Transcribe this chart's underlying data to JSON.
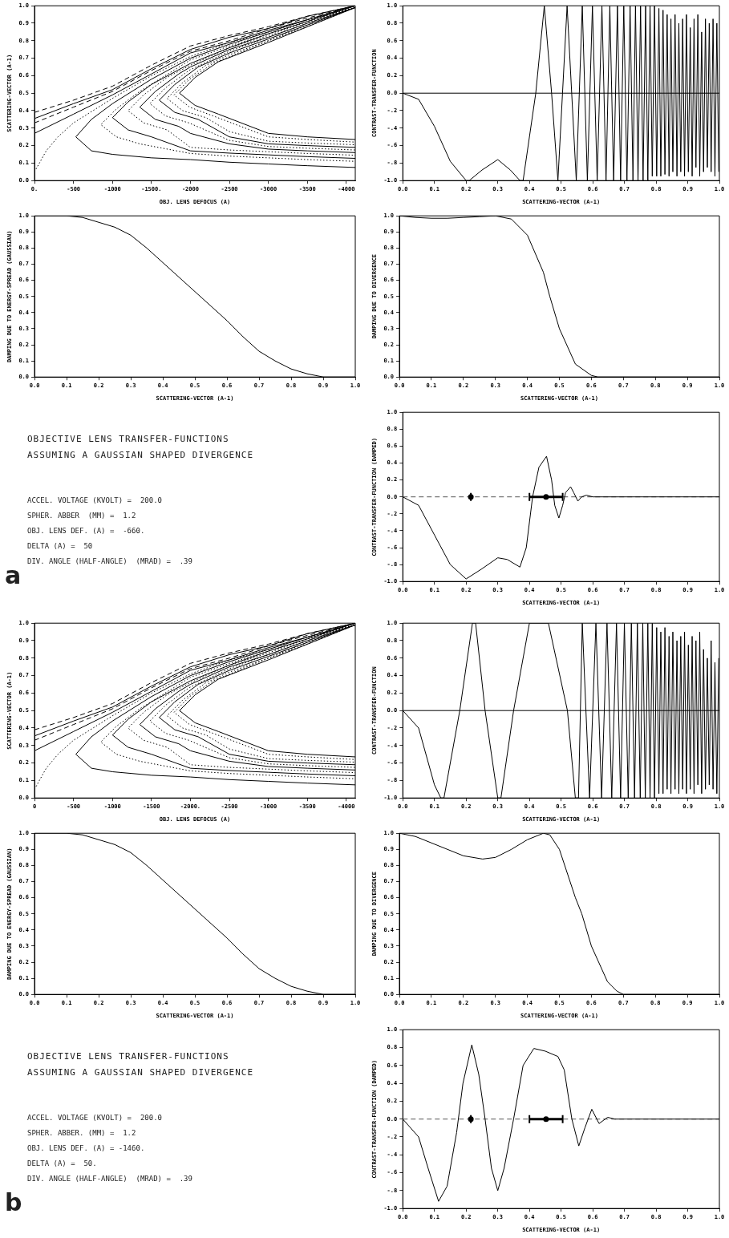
{
  "chart_data": [
    {
      "type": "line",
      "xlabel": "OBJ. LENS DEFOCUS (A)",
      "ylabel": "SCATTERING-VECTOR (A-1)",
      "xlim": [
        0,
        -4115
      ],
      "ylim": [
        0,
        1
      ],
      "xticks": [
        {
          "value": 0,
          "label": "0."
        },
        -500,
        -1000,
        {
          "value": -1500,
          "label": "-1500."
        },
        -2000,
        -2500,
        -3000,
        -3500,
        -4000
      ],
      "yticks": [
        {
          "value": 0,
          "label": "0.0"
        },
        0.1,
        0.2,
        0.3,
        0.4,
        0.5,
        0.6,
        0.7,
        0.8,
        0.9,
        {
          "value": 1,
          "label": "1.0"
        }
      ],
      "grid": false,
      "legend": false,
      "marker": "none",
      "series": [
        {
          "color": "#000000",
          "line_style": "dashed",
          "x": [
            0,
            -500,
            -1000,
            -1500,
            -2000,
            -2500,
            -3000,
            -3500,
            -4115
          ],
          "values": [
            0.39,
            0.46,
            0.54,
            0.66,
            0.77,
            0.83,
            0.88,
            0.94,
            1.0
          ]
        },
        {
          "color": "#000000",
          "line_style": "solid",
          "x": [
            0,
            -500,
            -1000,
            -1500,
            -2000,
            -2500,
            -3000,
            -3500,
            -4115
          ],
          "values": [
            0.355,
            0.44,
            0.52,
            0.64,
            0.75,
            0.82,
            0.87,
            0.94,
            1.0
          ]
        },
        {
          "color": "#000000",
          "line_style": "dashed",
          "x": [
            0,
            -500,
            -1000,
            -1500,
            -2000,
            -2500,
            -3000,
            -3500,
            -4115
          ],
          "values": [
            0.33,
            0.42,
            0.51,
            0.63,
            0.74,
            0.8,
            0.87,
            0.93,
            1.0
          ]
        },
        {
          "color": "#000000",
          "line_style": "solid",
          "x": [
            0,
            -500,
            -1000,
            -1500,
            -2000,
            -2500,
            -3000,
            -3500,
            -4115
          ],
          "values": [
            0.27,
            0.38,
            0.49,
            0.61,
            0.73,
            0.79,
            0.86,
            0.92,
            1.0
          ]
        },
        {
          "color": "#000000",
          "line_style": "dotted",
          "x": [
            0,
            -150,
            -300,
            -500,
            -1000,
            -1500,
            -2000,
            -2500,
            -3000,
            -3500,
            -4115
          ],
          "values": [
            0.05,
            0.17,
            0.25,
            0.33,
            0.47,
            0.6,
            0.71,
            0.79,
            0.85,
            0.92,
            0.99
          ]
        },
        {
          "color": "#000000",
          "line_style": "solid",
          "x": [
            -4115,
            -3500,
            -3000,
            -2500,
            -2000,
            -1500,
            -1000,
            -730,
            -530,
            -730,
            -1000,
            -1500,
            -2000,
            -2500,
            -3000,
            -3500,
            -4115
          ],
          "values": [
            1.0,
            0.92,
            0.85,
            0.78,
            0.7,
            0.58,
            0.44,
            0.35,
            0.25,
            0.17,
            0.15,
            0.13,
            0.12,
            0.105,
            0.095,
            0.085,
            0.075
          ]
        },
        {
          "color": "#000000",
          "line_style": "dotted",
          "x": [
            -4115,
            -3500,
            -3000,
            -2500,
            -2000,
            -1350,
            -1050,
            -850,
            -1050,
            -1350,
            -2000,
            -2500,
            -3000,
            -3500,
            -4115
          ],
          "values": [
            1.0,
            0.91,
            0.84,
            0.77,
            0.69,
            0.51,
            0.41,
            0.32,
            0.25,
            0.21,
            0.155,
            0.14,
            0.13,
            0.12,
            0.11
          ]
        },
        {
          "color": "#000000",
          "line_style": "solid",
          "x": [
            -4115,
            -3500,
            -3000,
            -2500,
            -2000,
            -1500,
            -1200,
            -1000,
            -1200,
            -1500,
            -2000,
            -2500,
            -3000,
            -3500,
            -4115
          ],
          "values": [
            1.0,
            0.91,
            0.84,
            0.76,
            0.67,
            0.55,
            0.45,
            0.36,
            0.29,
            0.25,
            0.17,
            0.157,
            0.147,
            0.137,
            0.127
          ]
        },
        {
          "color": "#000000",
          "line_style": "dotted",
          "x": [
            -4115,
            -3500,
            -3000,
            -2500,
            -2000,
            -1700,
            -1400,
            -1200,
            -1400,
            -1700,
            -2000,
            -2500,
            -3000,
            -3500,
            -4115
          ],
          "values": [
            0.99,
            0.91,
            0.83,
            0.76,
            0.66,
            0.59,
            0.49,
            0.4,
            0.33,
            0.29,
            0.19,
            0.175,
            0.165,
            0.155,
            0.145
          ]
        },
        {
          "color": "#000000",
          "line_style": "solid",
          "x": [
            -4115,
            -3500,
            -3000,
            -2500,
            -2000,
            -1850,
            -1550,
            -1350,
            -1550,
            -1850,
            -2000,
            -2500,
            -3000,
            -3500,
            -4115
          ],
          "values": [
            0.99,
            0.9,
            0.82,
            0.75,
            0.65,
            0.61,
            0.51,
            0.42,
            0.35,
            0.31,
            0.27,
            0.21,
            0.18,
            0.17,
            0.16
          ]
        },
        {
          "color": "#000000",
          "line_style": "dotted",
          "x": [
            -4115,
            -3500,
            -3000,
            -2500,
            -1980,
            -1680,
            -1480,
            -1680,
            -1980,
            -2500,
            -3000,
            -3500,
            -4115
          ],
          "values": [
            0.99,
            0.9,
            0.82,
            0.74,
            0.63,
            0.53,
            0.44,
            0.37,
            0.33,
            0.23,
            0.195,
            0.185,
            0.175
          ]
        },
        {
          "color": "#000000",
          "line_style": "solid",
          "x": [
            -4115,
            -3500,
            -3000,
            -2500,
            -2100,
            -1800,
            -1600,
            -1800,
            -2100,
            -2500,
            -3000,
            -3500,
            -4115
          ],
          "values": [
            0.99,
            0.89,
            0.81,
            0.73,
            0.65,
            0.55,
            0.46,
            0.39,
            0.35,
            0.25,
            0.21,
            0.2,
            0.19
          ]
        },
        {
          "color": "#000000",
          "line_style": "dotted",
          "x": [
            -4115,
            -3500,
            -3000,
            -2500,
            -2200,
            -1900,
            -1700,
            -1900,
            -2200,
            -2500,
            -3000,
            -3500,
            -4115
          ],
          "values": [
            0.99,
            0.89,
            0.8,
            0.72,
            0.66,
            0.56,
            0.47,
            0.4,
            0.36,
            0.28,
            0.225,
            0.215,
            0.205
          ]
        },
        {
          "color": "#000000",
          "line_style": "dotted",
          "x": [
            -4115,
            -3500,
            -3000,
            -2290,
            -1990,
            -1790,
            -1990,
            -2290,
            -3000,
            -3500,
            -4115
          ],
          "values": [
            0.99,
            0.88,
            0.8,
            0.67,
            0.58,
            0.49,
            0.42,
            0.37,
            0.25,
            0.235,
            0.22
          ]
        },
        {
          "color": "#000000",
          "line_style": "solid",
          "x": [
            -4115,
            -3500,
            -3000,
            -2360,
            -2060,
            -1860,
            -2060,
            -2360,
            -3000,
            -3500,
            -4115
          ],
          "values": [
            0.99,
            0.88,
            0.79,
            0.68,
            0.59,
            0.5,
            0.43,
            0.38,
            0.27,
            0.25,
            0.235
          ]
        }
      ]
    },
    {
      "type": "line",
      "xlabel": "SCATTERING-VECTOR (A-1)",
      "ylabel": "CONTRAST-TRANSFER-FUNCTION",
      "xlim": [
        0,
        1
      ],
      "ylim": [
        -1,
        1
      ],
      "xticks": [
        {
          "value": 0,
          "label": "0.0"
        },
        0.1,
        0.2,
        0.3,
        0.4,
        0.5,
        0.6,
        0.7,
        0.8,
        0.9,
        {
          "value": 1,
          "label": "1.0"
        }
      ],
      "yticks": [
        {
          "value": -1,
          "label": "-1.0"
        },
        {
          "value": -0.8,
          "label": "-.8"
        },
        {
          "value": -0.6,
          "label": "-.6"
        },
        {
          "value": -0.4,
          "label": "-.4"
        },
        {
          "value": -0.2,
          "label": "-.2"
        },
        {
          "value": 0,
          "label": "0.0"
        },
        0.2,
        0.4,
        0.6,
        0.8,
        {
          "value": 1,
          "label": "1.0"
        }
      ],
      "grid": false,
      "legend": false,
      "marker": "none",
      "ref_lines": [
        {
          "axis": "y",
          "value": 0,
          "color": "#000000",
          "line_style": "solid"
        }
      ],
      "x": [
        0,
        0.05,
        0.1,
        0.15,
        0.2,
        0.21,
        0.25,
        0.3,
        0.34,
        0.37,
        0.38,
        0.42,
        0.447,
        0.47,
        0.49,
        0.519,
        0.548,
        0.567,
        0.583,
        0.599,
        0.614,
        0.629,
        0.642,
        0.654,
        0.666,
        0.678,
        0.688,
        0.698,
        0.708,
        0.718,
        0.727,
        0.735,
        0.743,
        0.751,
        0.759,
        0.767,
        0.774,
        0.781,
        0.788,
        0.795,
        0.802,
        0.809,
        0.815,
        0.822,
        0.828,
        0.835,
        0.841,
        0.847,
        0.853,
        0.86,
        0.866,
        0.872,
        0.878,
        0.884,
        0.89,
        0.896,
        0.902,
        0.908,
        0.914,
        0.92,
        0.926,
        0.932,
        0.938,
        0.944,
        0.95,
        0.956,
        0.962,
        0.968,
        0.974,
        0.98,
        0.986,
        0.992,
        0.998
      ],
      "series": [
        {
          "color": "#000000",
          "values": [
            0,
            -0.07,
            -0.38,
            -0.78,
            -1,
            -1,
            -0.88,
            -0.76,
            -0.88,
            -1,
            -1,
            0,
            1,
            0,
            -1,
            1,
            -1,
            1,
            -1,
            1,
            -1,
            1,
            -1,
            1,
            -1,
            1,
            -1,
            1,
            -1,
            1,
            -1,
            1,
            -1,
            1,
            -1,
            1,
            -1,
            1,
            -0.95,
            1,
            -0.95,
            0.97,
            -0.95,
            0.95,
            -0.93,
            0.9,
            -0.95,
            0.85,
            -0.9,
            0.9,
            -0.95,
            0.8,
            -0.9,
            0.85,
            -0.95,
            0.9,
            -0.9,
            0.75,
            -0.95,
            0.85,
            -0.85,
            0.9,
            -0.95,
            0.7,
            -0.9,
            0.85,
            -0.85,
            0.8,
            -0.9,
            0.85,
            -0.95,
            0.8,
            -0.9
          ]
        }
      ]
    },
    {
      "type": "line",
      "xlabel": "SCATTERING-VECTOR (A-1)",
      "ylabel": "DAMPING DUE TO ENERGY-SPREAD (GAUSSIAN)",
      "xlim": [
        0,
        1
      ],
      "ylim": [
        0,
        1
      ],
      "xticks": [
        {
          "value": 0,
          "label": "0.0"
        },
        0.1,
        0.2,
        0.3,
        0.4,
        0.5,
        0.6,
        0.7,
        0.8,
        0.9,
        {
          "value": 1,
          "label": "1.0"
        }
      ],
      "yticks": [
        {
          "value": 0,
          "label": "0.0"
        },
        0.1,
        0.2,
        0.3,
        0.4,
        0.5,
        0.6,
        0.7,
        0.8,
        0.9,
        {
          "value": 1,
          "label": "1.0"
        }
      ],
      "grid": false,
      "legend": false,
      "marker": "none",
      "x": [
        0,
        0.1,
        0.15,
        0.2,
        0.25,
        0.3,
        0.35,
        0.4,
        0.45,
        0.5,
        0.55,
        0.6,
        0.65,
        0.7,
        0.75,
        0.8,
        0.85,
        0.9,
        1
      ],
      "series": [
        {
          "color": "#000000",
          "values": [
            1,
            1,
            0.99,
            0.96,
            0.93,
            0.88,
            0.8,
            0.71,
            0.62,
            0.53,
            0.44,
            0.35,
            0.25,
            0.16,
            0.1,
            0.05,
            0.02,
            0,
            0
          ]
        }
      ]
    },
    {
      "type": "line",
      "xlabel": "SCATTERING-VECTOR (A-1)",
      "ylabel": "DAMPING DUE TO DIVERGENCE",
      "xlim": [
        0,
        1
      ],
      "ylim": [
        0,
        1
      ],
      "xticks": [
        {
          "value": 0,
          "label": "0.0"
        },
        0.1,
        0.2,
        0.3,
        0.4,
        0.5,
        0.6,
        0.7,
        0.8,
        0.9,
        {
          "value": 1,
          "label": "1.0"
        }
      ],
      "yticks": [
        {
          "value": 0,
          "label": "0.0"
        },
        0.1,
        0.2,
        0.3,
        0.4,
        0.5,
        0.6,
        0.7,
        0.8,
        0.9,
        {
          "value": 1,
          "label": "1.0"
        }
      ],
      "grid": false,
      "legend": false,
      "marker": "none",
      "x": [
        0,
        0.05,
        0.1,
        0.15,
        0.2,
        0.25,
        0.3,
        0.35,
        0.4,
        0.45,
        0.47,
        0.5,
        0.55,
        0.6,
        0.62,
        1
      ],
      "series": [
        {
          "color": "#000000",
          "values": [
            1,
            0.99,
            0.985,
            0.985,
            0.99,
            0.995,
            1,
            0.98,
            0.88,
            0.65,
            0.5,
            0.3,
            0.08,
            0.01,
            0,
            0
          ]
        }
      ]
    },
    {
      "type": "other",
      "title": "OBJECTIVE LENS TRANSFER-FUNCTIONS",
      "subtitle": "ASSUMING A GAUSSIAN SHAPED DIVERGENCE",
      "annotations": [
        "ACCEL. VOLTAGE (KVOLT) =  200.0",
        "SPHER. ABBER  (MM) =  1.2",
        "OBJ. LENS DEF. (A) =  -660.",
        "DELTA (A) =  50",
        "DIV. ANGLE (HALF-ANGLE)  (MRAD) =  .39",
        "a"
      ]
    },
    {
      "type": "line",
      "xlabel": "SCATTERING-VECTOR (A-1)",
      "ylabel": "CONTRAST-TRANSFER-FUNCTION (DAMPED)",
      "xlim": [
        0,
        1
      ],
      "ylim": [
        -1,
        1
      ],
      "xticks": [
        {
          "value": 0,
          "label": "0.0"
        },
        0.1,
        0.2,
        0.3,
        0.4,
        0.5,
        0.6,
        0.7,
        0.8,
        0.9,
        {
          "value": 1,
          "label": "1.0"
        }
      ],
      "yticks": [
        {
          "value": -1,
          "label": "-1.0"
        },
        {
          "value": -0.8,
          "label": "-.8"
        },
        {
          "value": -0.6,
          "label": "-.6"
        },
        {
          "value": -0.4,
          "label": "-.4"
        },
        {
          "value": -0.2,
          "label": "-.2"
        },
        {
          "value": 0,
          "label": "0.0"
        },
        0.2,
        0.4,
        0.6,
        0.8,
        {
          "value": 1,
          "label": "1.0"
        }
      ],
      "grid": false,
      "legend": false,
      "marker": "none",
      "ref_lines": [
        {
          "axis": "y",
          "value": 0,
          "color": "#555555",
          "line_style": "dashed"
        }
      ],
      "x": [
        0,
        0.05,
        0.1,
        0.15,
        0.2,
        0.25,
        0.3,
        0.33,
        0.37,
        0.39,
        0.41,
        0.43,
        0.454,
        0.47,
        0.48,
        0.493,
        0.505,
        0.514,
        0.53,
        0.54,
        0.553,
        0.565,
        0.58,
        0.6,
        1
      ],
      "series": [
        {
          "color": "#000000",
          "values": [
            0,
            -0.1,
            -0.45,
            -0.8,
            -0.97,
            -0.85,
            -0.72,
            -0.74,
            -0.83,
            -0.6,
            0,
            0.35,
            0.48,
            0.2,
            -0.1,
            -0.25,
            -0.1,
            0.05,
            0.12,
            0.05,
            -0.05,
            0,
            0.02,
            0,
            0
          ]
        },
        {
          "type": "scatter",
          "marker": "circle",
          "color": "#000000",
          "x": [
            0.215,
            0.4525
          ],
          "values": [
            0,
            0
          ],
          "xerrors": [
            0,
            0.0525
          ]
        }
      ]
    },
    {
      "type": "line",
      "xlabel": "OBJ. LENS DEFOCUS (A)",
      "ylabel": "SCATTERING-VECTOR (A-1)",
      "xlim": [
        0,
        -4115
      ],
      "ylim": [
        0,
        1
      ],
      "xticks": [
        0,
        -500,
        -1000,
        -1500,
        {
          "value": -2000,
          "label": "-2000."
        },
        -2500,
        -3000,
        -3500,
        -4000
      ],
      "yticks": [
        {
          "value": 0,
          "label": "0.0"
        },
        0.1,
        0.2,
        0.3,
        0.4,
        0.5,
        0.6,
        0.7,
        0.8,
        0.9,
        {
          "value": 1,
          "label": "1.0"
        }
      ],
      "grid": false,
      "legend": false,
      "marker": "none",
      "series": [
        {
          "color": "#000000",
          "line_style": "dashed",
          "x": [
            0,
            -500,
            -1000,
            -1500,
            -2000,
            -2500,
            -3000,
            -3500,
            -4115
          ],
          "values": [
            0.39,
            0.46,
            0.54,
            0.66,
            0.77,
            0.83,
            0.88,
            0.94,
            1.0
          ]
        },
        {
          "color": "#000000",
          "line_style": "solid",
          "x": [
            0,
            -500,
            -1000,
            -1500,
            -2000,
            -2500,
            -3000,
            -3500,
            -4115
          ],
          "values": [
            0.355,
            0.44,
            0.52,
            0.64,
            0.75,
            0.82,
            0.87,
            0.94,
            1.0
          ]
        },
        {
          "color": "#000000",
          "line_style": "dashed",
          "x": [
            0,
            -500,
            -1000,
            -1500,
            -2000,
            -2500,
            -3000,
            -3500,
            -4115
          ],
          "values": [
            0.33,
            0.42,
            0.51,
            0.63,
            0.74,
            0.8,
            0.87,
            0.93,
            1.0
          ]
        },
        {
          "color": "#000000",
          "line_style": "solid",
          "x": [
            0,
            -500,
            -1000,
            -1500,
            -2000,
            -2500,
            -3000,
            -3500,
            -4115
          ],
          "values": [
            0.27,
            0.38,
            0.49,
            0.61,
            0.73,
            0.79,
            0.86,
            0.92,
            1.0
          ]
        },
        {
          "color": "#000000",
          "line_style": "dotted",
          "x": [
            0,
            -150,
            -300,
            -500,
            -1000,
            -1500,
            -2000,
            -2500,
            -3000,
            -3500,
            -4115
          ],
          "values": [
            0.05,
            0.17,
            0.25,
            0.33,
            0.47,
            0.6,
            0.71,
            0.79,
            0.85,
            0.92,
            0.99
          ]
        },
        {
          "color": "#000000",
          "line_style": "solid",
          "x": [
            -4115,
            -3500,
            -3000,
            -2500,
            -2000,
            -1500,
            -1000,
            -730,
            -530,
            -730,
            -1000,
            -1500,
            -2000,
            -2500,
            -3000,
            -3500,
            -4115
          ],
          "values": [
            1.0,
            0.92,
            0.85,
            0.78,
            0.7,
            0.58,
            0.44,
            0.35,
            0.25,
            0.17,
            0.15,
            0.13,
            0.12,
            0.105,
            0.095,
            0.085,
            0.075
          ]
        },
        {
          "color": "#000000",
          "line_style": "dotted",
          "x": [
            -4115,
            -3500,
            -3000,
            -2500,
            -2000,
            -1350,
            -1050,
            -850,
            -1050,
            -1350,
            -2000,
            -2500,
            -3000,
            -3500,
            -4115
          ],
          "values": [
            1.0,
            0.91,
            0.84,
            0.77,
            0.69,
            0.51,
            0.41,
            0.32,
            0.25,
            0.21,
            0.155,
            0.14,
            0.13,
            0.12,
            0.11
          ]
        },
        {
          "color": "#000000",
          "line_style": "solid",
          "x": [
            -4115,
            -3500,
            -3000,
            -2500,
            -2000,
            -1500,
            -1200,
            -1000,
            -1200,
            -1500,
            -2000,
            -2500,
            -3000,
            -3500,
            -4115
          ],
          "values": [
            1.0,
            0.91,
            0.84,
            0.76,
            0.67,
            0.55,
            0.45,
            0.36,
            0.29,
            0.25,
            0.17,
            0.157,
            0.147,
            0.137,
            0.127
          ]
        },
        {
          "color": "#000000",
          "line_style": "dotted",
          "x": [
            -4115,
            -3500,
            -3000,
            -2500,
            -2000,
            -1700,
            -1400,
            -1200,
            -1400,
            -1700,
            -2000,
            -2500,
            -3000,
            -3500,
            -4115
          ],
          "values": [
            0.99,
            0.91,
            0.83,
            0.76,
            0.66,
            0.59,
            0.49,
            0.4,
            0.33,
            0.29,
            0.19,
            0.175,
            0.165,
            0.155,
            0.145
          ]
        },
        {
          "color": "#000000",
          "line_style": "solid",
          "x": [
            -4115,
            -3500,
            -3000,
            -2500,
            -2000,
            -1850,
            -1550,
            -1350,
            -1550,
            -1850,
            -2000,
            -2500,
            -3000,
            -3500,
            -4115
          ],
          "values": [
            0.99,
            0.9,
            0.82,
            0.75,
            0.65,
            0.61,
            0.51,
            0.42,
            0.35,
            0.31,
            0.27,
            0.21,
            0.18,
            0.17,
            0.16
          ]
        },
        {
          "color": "#000000",
          "line_style": "dotted",
          "x": [
            -4115,
            -3500,
            -3000,
            -2500,
            -1980,
            -1680,
            -1480,
            -1680,
            -1980,
            -2500,
            -3000,
            -3500,
            -4115
          ],
          "values": [
            0.99,
            0.9,
            0.82,
            0.74,
            0.63,
            0.53,
            0.44,
            0.37,
            0.33,
            0.23,
            0.195,
            0.185,
            0.175
          ]
        },
        {
          "color": "#000000",
          "line_style": "solid",
          "x": [
            -4115,
            -3500,
            -3000,
            -2500,
            -2100,
            -1800,
            -1600,
            -1800,
            -2100,
            -2500,
            -3000,
            -3500,
            -4115
          ],
          "values": [
            0.99,
            0.89,
            0.81,
            0.73,
            0.65,
            0.55,
            0.46,
            0.39,
            0.35,
            0.25,
            0.21,
            0.2,
            0.19
          ]
        },
        {
          "color": "#000000",
          "line_style": "dotted",
          "x": [
            -4115,
            -3500,
            -3000,
            -2500,
            -2200,
            -1900,
            -1700,
            -1900,
            -2200,
            -2500,
            -3000,
            -3500,
            -4115
          ],
          "values": [
            0.99,
            0.89,
            0.8,
            0.72,
            0.66,
            0.56,
            0.47,
            0.4,
            0.36,
            0.28,
            0.225,
            0.215,
            0.205
          ]
        },
        {
          "color": "#000000",
          "line_style": "dotted",
          "x": [
            -4115,
            -3500,
            -3000,
            -2290,
            -1990,
            -1790,
            -1990,
            -2290,
            -3000,
            -3500,
            -4115
          ],
          "values": [
            0.99,
            0.88,
            0.8,
            0.67,
            0.58,
            0.49,
            0.42,
            0.37,
            0.25,
            0.235,
            0.22
          ]
        },
        {
          "color": "#000000",
          "line_style": "solid",
          "x": [
            -4115,
            -3500,
            -3000,
            -2360,
            -2060,
            -1860,
            -2060,
            -2360,
            -3000,
            -3500,
            -4115
          ],
          "values": [
            0.99,
            0.88,
            0.79,
            0.68,
            0.59,
            0.5,
            0.43,
            0.38,
            0.27,
            0.25,
            0.235
          ]
        }
      ]
    },
    {
      "type": "line",
      "xlabel": "SCATTERING-VECTOR (A-1)",
      "ylabel": "CONTRAST-TRANSFER-FUNCTION",
      "xlim": [
        0,
        1
      ],
      "ylim": [
        -1,
        1
      ],
      "xticks": [
        {
          "value": 0,
          "label": "0.0"
        },
        0.1,
        0.2,
        0.3,
        0.4,
        0.5,
        0.6,
        0.7,
        0.8,
        0.9,
        {
          "value": 1,
          "label": "1.0"
        }
      ],
      "yticks": [
        {
          "value": -1,
          "label": "-1.0"
        },
        {
          "value": -0.8,
          "label": "-.8"
        },
        {
          "value": -0.6,
          "label": "-.6"
        },
        {
          "value": -0.4,
          "label": "-.4"
        },
        {
          "value": -0.2,
          "label": "-.2"
        },
        {
          "value": 0,
          "label": "0.0"
        },
        0.2,
        0.4,
        0.6,
        0.8,
        {
          "value": 1,
          "label": "1.0"
        }
      ],
      "grid": false,
      "legend": false,
      "marker": "none",
      "ref_lines": [
        {
          "axis": "y",
          "value": 0,
          "color": "#000000",
          "line_style": "solid"
        }
      ],
      "x": [
        0,
        0.05,
        0.1,
        0.12,
        0.13,
        0.18,
        0.22,
        0.23,
        0.26,
        0.3,
        0.31,
        0.35,
        0.4,
        0.46,
        0.52,
        0.545,
        0.555,
        0.567,
        0.59,
        0.61,
        0.628,
        0.645,
        0.66,
        0.675,
        0.688,
        0.7,
        0.712,
        0.722,
        0.732,
        0.741,
        0.75,
        0.758,
        0.766,
        0.774,
        0.781,
        0.788,
        0.795,
        0.802,
        0.809,
        0.815,
        0.822,
        0.828,
        0.835,
        0.841,
        0.847,
        0.853,
        0.86,
        0.866,
        0.872,
        0.878,
        0.884,
        0.89,
        0.896,
        0.902,
        0.908,
        0.914,
        0.92,
        0.926,
        0.932,
        0.938,
        0.944,
        0.95,
        0.956,
        0.962,
        0.968,
        0.974,
        0.98,
        0.986,
        0.992,
        0.998
      ],
      "series": [
        {
          "color": "#000000",
          "values": [
            0,
            -0.2,
            -0.85,
            -1,
            -1,
            0,
            1,
            1,
            0,
            -1,
            -1,
            0,
            1,
            1,
            0,
            -1,
            -1,
            1,
            -1,
            1,
            -1,
            1,
            -1,
            1,
            -1,
            1,
            -1,
            1,
            -1,
            1,
            -1,
            1,
            -1,
            1,
            -1,
            1,
            -1,
            0.95,
            -0.95,
            0.9,
            -0.95,
            0.95,
            -0.9,
            0.85,
            -0.95,
            0.9,
            -0.9,
            0.8,
            -0.95,
            0.85,
            -0.9,
            0.9,
            -0.95,
            0.75,
            -0.9,
            0.85,
            -0.95,
            0.8,
            -0.85,
            0.9,
            -0.95,
            0.7,
            -0.9,
            0.6,
            -0.85,
            0.8,
            -0.9,
            0.55,
            -0.95,
            0.6
          ]
        }
      ]
    },
    {
      "type": "line",
      "xlabel": "SCATTERING-VECTOR (A-1)",
      "ylabel": "DAMPING DUE TO ENERGY-SPREAD (GAUSSIAN)",
      "xlim": [
        0,
        1
      ],
      "ylim": [
        0,
        1
      ],
      "xticks": [
        {
          "value": 0,
          "label": "0.0"
        },
        0.1,
        0.2,
        0.3,
        0.4,
        0.5,
        0.6,
        0.7,
        0.8,
        0.9,
        {
          "value": 1,
          "label": "1.0"
        }
      ],
      "yticks": [
        {
          "value": 0,
          "label": "0.0"
        },
        0.1,
        0.2,
        0.3,
        0.4,
        0.5,
        0.6,
        0.7,
        0.8,
        0.9,
        {
          "value": 1,
          "label": "1.0"
        }
      ],
      "grid": false,
      "legend": false,
      "marker": "none",
      "x": [
        0,
        0.1,
        0.15,
        0.2,
        0.25,
        0.3,
        0.35,
        0.4,
        0.45,
        0.5,
        0.55,
        0.6,
        0.65,
        0.7,
        0.75,
        0.8,
        0.85,
        0.9,
        1
      ],
      "series": [
        {
          "color": "#000000",
          "values": [
            1,
            1,
            0.99,
            0.96,
            0.93,
            0.88,
            0.8,
            0.71,
            0.62,
            0.53,
            0.44,
            0.35,
            0.25,
            0.16,
            0.1,
            0.05,
            0.02,
            0,
            0
          ]
        }
      ]
    },
    {
      "type": "line",
      "xlabel": "SCATTERING-VECTOR (A-1)",
      "ylabel": "DAMPING DUE TO DIVERGENCE",
      "xlim": [
        0,
        1
      ],
      "ylim": [
        0,
        1
      ],
      "xticks": [
        {
          "value": 0,
          "label": "0.0"
        },
        0.1,
        0.2,
        0.3,
        0.4,
        0.5,
        0.6,
        0.7,
        0.8,
        0.9,
        {
          "value": 1,
          "label": "1.0"
        }
      ],
      "yticks": [
        {
          "value": 0,
          "label": "0.0"
        },
        0.1,
        0.2,
        0.3,
        0.4,
        0.5,
        0.6,
        0.7,
        0.8,
        0.9,
        {
          "value": 1,
          "label": "1.0"
        }
      ],
      "grid": false,
      "legend": false,
      "marker": "none",
      "x": [
        0,
        0.05,
        0.1,
        0.15,
        0.2,
        0.26,
        0.3,
        0.35,
        0.4,
        0.45,
        0.47,
        0.5,
        0.55,
        0.57,
        0.6,
        0.65,
        0.68,
        0.7,
        1
      ],
      "series": [
        {
          "color": "#000000",
          "values": [
            1,
            0.98,
            0.94,
            0.9,
            0.86,
            0.84,
            0.85,
            0.9,
            0.96,
            1,
            0.99,
            0.9,
            0.6,
            0.5,
            0.3,
            0.08,
            0.02,
            0,
            0
          ]
        }
      ]
    },
    {
      "type": "other",
      "title": "OBJECTIVE LENS TRANSFER-FUNCTIONS",
      "subtitle": "ASSUMING A GAUSSIAN SHAPED DIVERGENCE",
      "annotations": [
        "ACCEL. VOLTAGE (KVOLT) =  200.0",
        "SPHER. ABBER. (MM) =  1.2",
        "OBJ. LENS DEF. (A) = -1460.",
        "DELTA (A) =  50.",
        "DIV. ANGLE (HALF-ANGLE)  (MRAD) =  .39",
        "b"
      ]
    },
    {
      "type": "line",
      "xlabel": "SCATTERING-VECTOR (A-1)",
      "ylabel": "CONTRAST-TRANSFER-FUNCTION (DAMPED)",
      "xlim": [
        0,
        1
      ],
      "ylim": [
        -1,
        1
      ],
      "xticks": [
        {
          "value": 0,
          "label": "0.0"
        },
        0.1,
        0.2,
        0.3,
        0.4,
        0.5,
        0.6,
        0.7,
        0.8,
        0.9,
        {
          "value": 1,
          "label": "1.0"
        }
      ],
      "yticks": [
        {
          "value": -1,
          "label": "-1.0"
        },
        {
          "value": -0.8,
          "label": "-.8"
        },
        {
          "value": -0.6,
          "label": "-.6"
        },
        {
          "value": -0.4,
          "label": "-.4"
        },
        {
          "value": -0.2,
          "label": "-.2"
        },
        {
          "value": 0,
          "label": "0.0"
        },
        0.2,
        0.4,
        0.6,
        0.8,
        {
          "value": 1,
          "label": "1.0"
        }
      ],
      "grid": false,
      "legend": false,
      "marker": "none",
      "ref_lines": [
        {
          "axis": "y",
          "value": 0,
          "color": "#555555",
          "line_style": "dashed"
        }
      ],
      "x": [
        0,
        0.05,
        0.08,
        0.113,
        0.14,
        0.17,
        0.19,
        0.218,
        0.24,
        0.26,
        0.28,
        0.3,
        0.32,
        0.35,
        0.38,
        0.414,
        0.45,
        0.49,
        0.51,
        0.534,
        0.556,
        0.575,
        0.597,
        0.62,
        0.647,
        0.67,
        1
      ],
      "series": [
        {
          "color": "#000000",
          "values": [
            0,
            -0.2,
            -0.55,
            -0.92,
            -0.75,
            -0.15,
            0.4,
            0.83,
            0.5,
            0,
            -0.55,
            -0.8,
            -0.55,
            0,
            0.6,
            0.79,
            0.76,
            0.7,
            0.55,
            0,
            -0.3,
            -0.1,
            0.11,
            -0.05,
            0.02,
            0,
            0
          ]
        },
        {
          "type": "scatter",
          "marker": "circle",
          "color": "#000000",
          "x": [
            0.215,
            0.4525
          ],
          "values": [
            0,
            0
          ],
          "xerrors": [
            0,
            0.0525
          ]
        }
      ]
    }
  ]
}
